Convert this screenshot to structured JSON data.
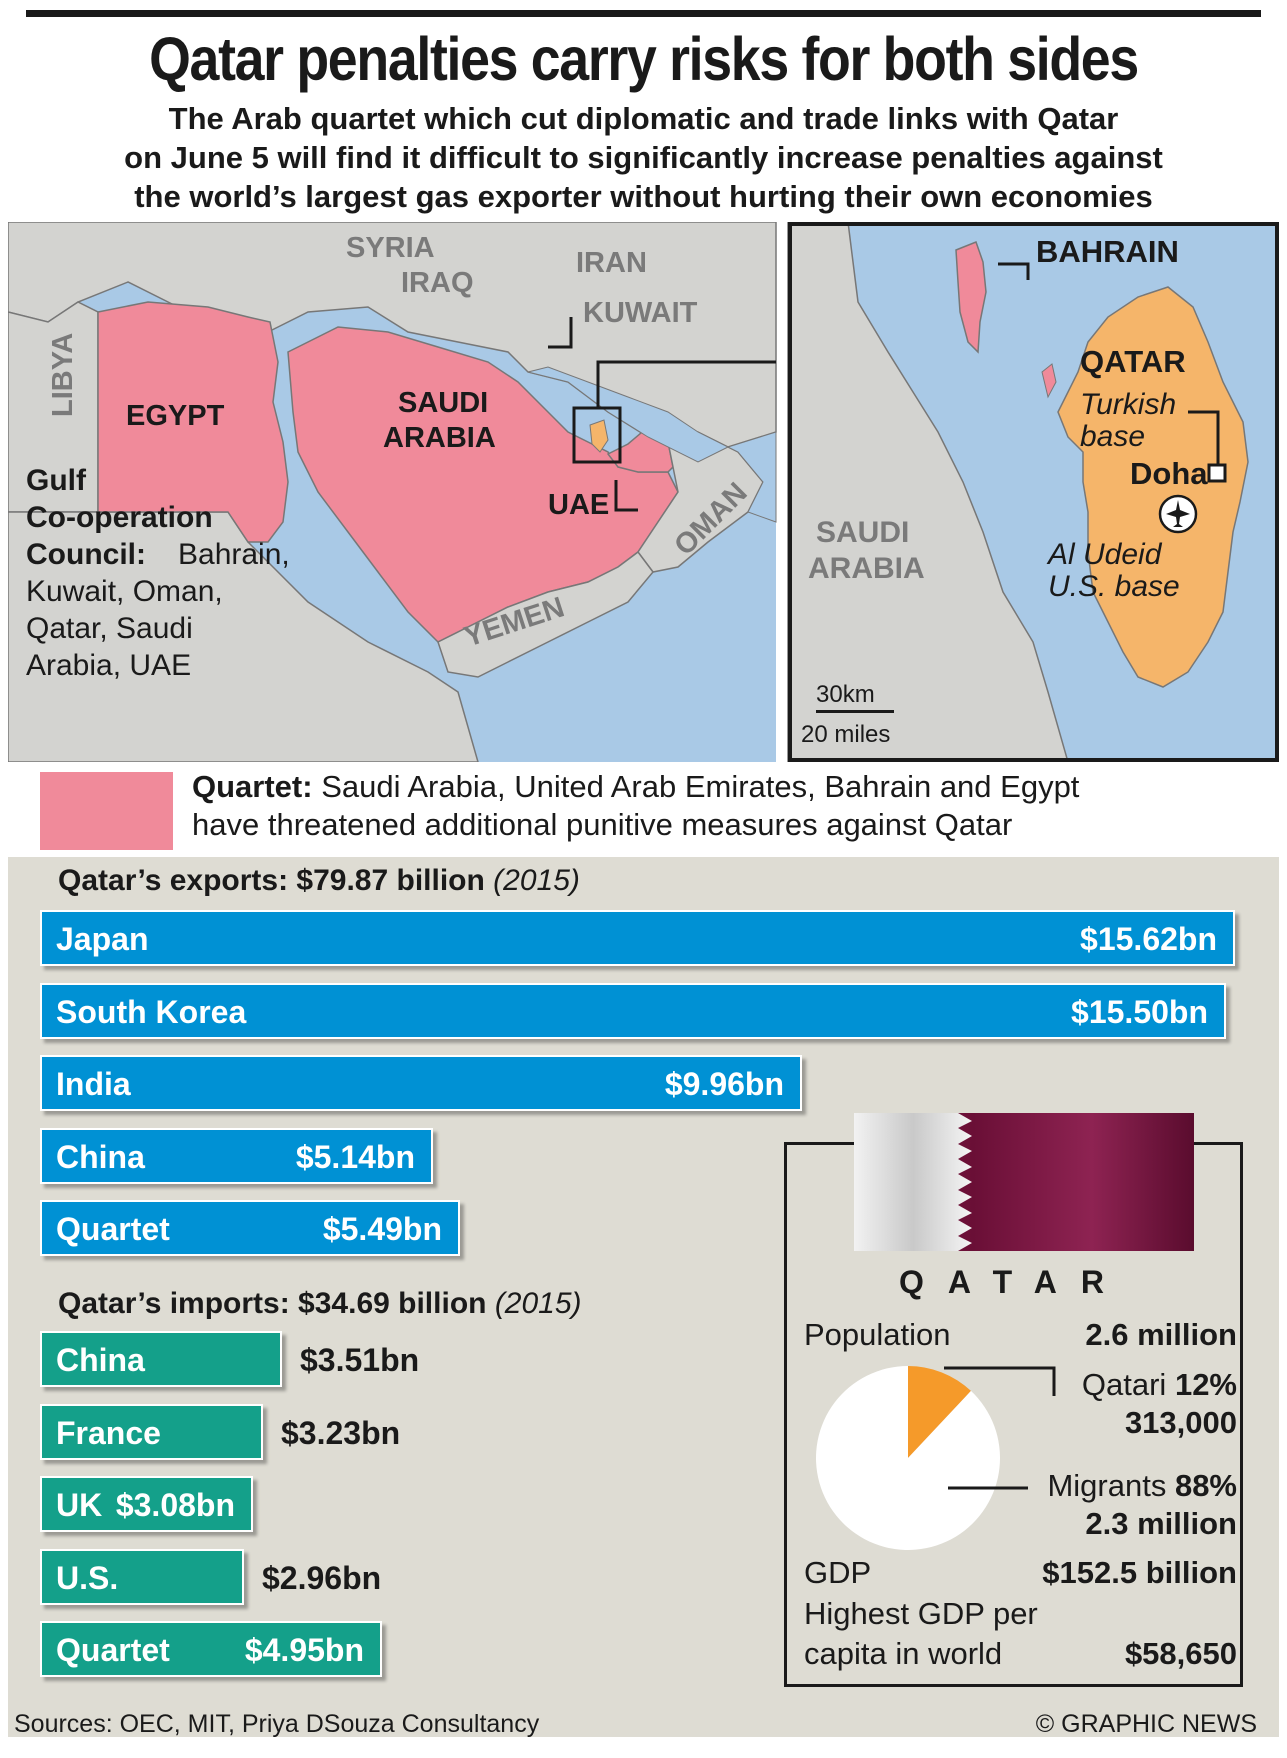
{
  "title": "Qatar penalties carry risks for both sides",
  "subtitle": [
    "The Arab quartet which cut diplomatic and trade links with Qatar",
    "on June 5 will find it difficult to significantly increase penalties against",
    "the world’s largest gas exporter without hurting their own economies"
  ],
  "map": {
    "labels": {
      "syria": "SYRIA",
      "iraq": "IRAQ",
      "iran": "IRAN",
      "kuwait": "KUWAIT",
      "libya": "LIBYA",
      "egypt": "EGYPT",
      "saudi1": "SAUDI",
      "saudi2": "ARABIA",
      "uae": "UAE",
      "oman": "OMAN",
      "yemen": "YEMEN"
    },
    "gcc": {
      "heading1": "Gulf",
      "heading2": "Co-operation",
      "heading3": "Council:",
      "members1": "Bahrain,",
      "members2": "Kuwait, Oman,",
      "members3": "Qatar, Saudi",
      "members4": "Arabia, UAE"
    },
    "inset": {
      "bahrain": "BAHRAIN",
      "qatar": "QATAR",
      "turkish1": "Turkish",
      "turkish2": "base",
      "doha": "Doha",
      "udeid1": "Al Udeid",
      "udeid2": "U.S. base",
      "saudi1": "SAUDI",
      "saudi2": "ARABIA",
      "scale_km": "30km",
      "scale_mi": "20 miles"
    }
  },
  "legend": {
    "bold": "Quartet:",
    "line1": " Saudi Arabia, United Arab Emirates, Bahrain and Egypt",
    "line2": "have threatened additional punitive measures against Qatar"
  },
  "chart_data": [
    {
      "type": "bar",
      "title": "Qatar’s exports: $79.87 billion",
      "title_note": "(2015)",
      "categories": [
        "Japan",
        "South Korea",
        "India",
        "China",
        "Quartet"
      ],
      "values": [
        15.62,
        15.5,
        9.96,
        5.14,
        5.49
      ],
      "value_labels": [
        "$15.62bn",
        "$15.50bn",
        "$9.96bn",
        "$5.14bn",
        "$5.49bn"
      ],
      "unit": "$bn",
      "color": "#0091d4"
    },
    {
      "type": "bar",
      "title": "Qatar’s imports: $34.69 billion",
      "title_note": "(2015)",
      "categories": [
        "China",
        "France",
        "UK",
        "U.S.",
        "Quartet"
      ],
      "values": [
        3.51,
        3.23,
        3.08,
        2.96,
        4.95
      ],
      "value_labels": [
        "$3.51bn",
        "$3.23bn",
        "$3.08bn",
        "$2.96bn",
        "$4.95bn"
      ],
      "unit": "$bn",
      "color": "#14a08a"
    },
    {
      "type": "pie",
      "categories": [
        "Qatari",
        "Migrants"
      ],
      "values": [
        12,
        88
      ],
      "colors": [
        "#f59a2a",
        "#ffffff"
      ]
    }
  ],
  "qatar_box": {
    "name": "QATAR",
    "population_label": "Population",
    "population_value": "2.6 million",
    "qatari_label": "Qatari",
    "qatari_pct": "12%",
    "qatari_count": "313,000",
    "migrants_label": "Migrants",
    "migrants_pct": "88%",
    "migrants_count": "2.3 million",
    "gdp_label": "GDP",
    "gdp_value": "$152.5 billion",
    "gdp_pc_line1": "Highest GDP per",
    "gdp_pc_line2": "capita in world",
    "gdp_pc_value": "$58,650"
  },
  "footer": {
    "sources": "Sources: OEC, MIT, Priya DSouza Consultancy",
    "credit": "© GRAPHIC NEWS"
  }
}
